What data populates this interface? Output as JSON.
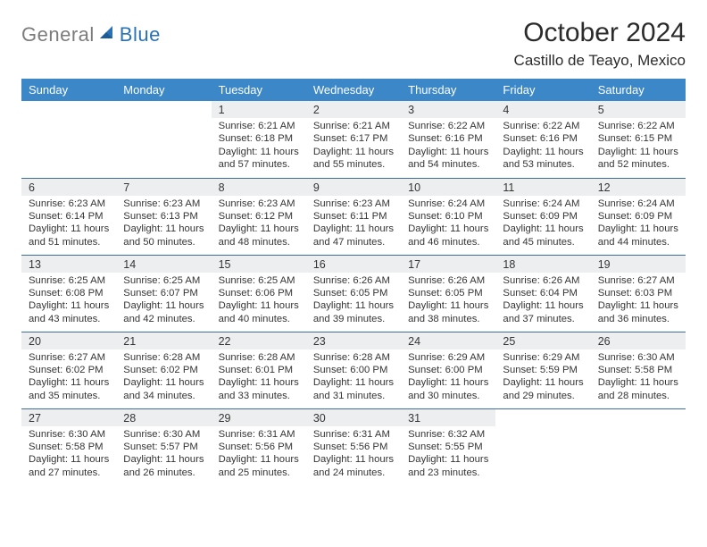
{
  "logo": {
    "general": "General",
    "blue": "Blue"
  },
  "title": "October 2024",
  "location": "Castillo de Teayo, Mexico",
  "colors": {
    "header_bg": "#3c87c7",
    "header_fg": "#ffffff",
    "daynum_bg": "#eceef0",
    "row_border": "#3c6f9e",
    "logo_gray": "#7c7c7c",
    "logo_blue": "#2a72b5"
  },
  "weekdays": [
    "Sunday",
    "Monday",
    "Tuesday",
    "Wednesday",
    "Thursday",
    "Friday",
    "Saturday"
  ],
  "first_weekday_index": 2,
  "days_in_month": 31,
  "days": {
    "1": {
      "sunrise": "6:21 AM",
      "sunset": "6:18 PM",
      "daylight": "11 hours and 57 minutes."
    },
    "2": {
      "sunrise": "6:21 AM",
      "sunset": "6:17 PM",
      "daylight": "11 hours and 55 minutes."
    },
    "3": {
      "sunrise": "6:22 AM",
      "sunset": "6:16 PM",
      "daylight": "11 hours and 54 minutes."
    },
    "4": {
      "sunrise": "6:22 AM",
      "sunset": "6:16 PM",
      "daylight": "11 hours and 53 minutes."
    },
    "5": {
      "sunrise": "6:22 AM",
      "sunset": "6:15 PM",
      "daylight": "11 hours and 52 minutes."
    },
    "6": {
      "sunrise": "6:23 AM",
      "sunset": "6:14 PM",
      "daylight": "11 hours and 51 minutes."
    },
    "7": {
      "sunrise": "6:23 AM",
      "sunset": "6:13 PM",
      "daylight": "11 hours and 50 minutes."
    },
    "8": {
      "sunrise": "6:23 AM",
      "sunset": "6:12 PM",
      "daylight": "11 hours and 48 minutes."
    },
    "9": {
      "sunrise": "6:23 AM",
      "sunset": "6:11 PM",
      "daylight": "11 hours and 47 minutes."
    },
    "10": {
      "sunrise": "6:24 AM",
      "sunset": "6:10 PM",
      "daylight": "11 hours and 46 minutes."
    },
    "11": {
      "sunrise": "6:24 AM",
      "sunset": "6:09 PM",
      "daylight": "11 hours and 45 minutes."
    },
    "12": {
      "sunrise": "6:24 AM",
      "sunset": "6:09 PM",
      "daylight": "11 hours and 44 minutes."
    },
    "13": {
      "sunrise": "6:25 AM",
      "sunset": "6:08 PM",
      "daylight": "11 hours and 43 minutes."
    },
    "14": {
      "sunrise": "6:25 AM",
      "sunset": "6:07 PM",
      "daylight": "11 hours and 42 minutes."
    },
    "15": {
      "sunrise": "6:25 AM",
      "sunset": "6:06 PM",
      "daylight": "11 hours and 40 minutes."
    },
    "16": {
      "sunrise": "6:26 AM",
      "sunset": "6:05 PM",
      "daylight": "11 hours and 39 minutes."
    },
    "17": {
      "sunrise": "6:26 AM",
      "sunset": "6:05 PM",
      "daylight": "11 hours and 38 minutes."
    },
    "18": {
      "sunrise": "6:26 AM",
      "sunset": "6:04 PM",
      "daylight": "11 hours and 37 minutes."
    },
    "19": {
      "sunrise": "6:27 AM",
      "sunset": "6:03 PM",
      "daylight": "11 hours and 36 minutes."
    },
    "20": {
      "sunrise": "6:27 AM",
      "sunset": "6:02 PM",
      "daylight": "11 hours and 35 minutes."
    },
    "21": {
      "sunrise": "6:28 AM",
      "sunset": "6:02 PM",
      "daylight": "11 hours and 34 minutes."
    },
    "22": {
      "sunrise": "6:28 AM",
      "sunset": "6:01 PM",
      "daylight": "11 hours and 33 minutes."
    },
    "23": {
      "sunrise": "6:28 AM",
      "sunset": "6:00 PM",
      "daylight": "11 hours and 31 minutes."
    },
    "24": {
      "sunrise": "6:29 AM",
      "sunset": "6:00 PM",
      "daylight": "11 hours and 30 minutes."
    },
    "25": {
      "sunrise": "6:29 AM",
      "sunset": "5:59 PM",
      "daylight": "11 hours and 29 minutes."
    },
    "26": {
      "sunrise": "6:30 AM",
      "sunset": "5:58 PM",
      "daylight": "11 hours and 28 minutes."
    },
    "27": {
      "sunrise": "6:30 AM",
      "sunset": "5:58 PM",
      "daylight": "11 hours and 27 minutes."
    },
    "28": {
      "sunrise": "6:30 AM",
      "sunset": "5:57 PM",
      "daylight": "11 hours and 26 minutes."
    },
    "29": {
      "sunrise": "6:31 AM",
      "sunset": "5:56 PM",
      "daylight": "11 hours and 25 minutes."
    },
    "30": {
      "sunrise": "6:31 AM",
      "sunset": "5:56 PM",
      "daylight": "11 hours and 24 minutes."
    },
    "31": {
      "sunrise": "6:32 AM",
      "sunset": "5:55 PM",
      "daylight": "11 hours and 23 minutes."
    }
  },
  "labels": {
    "sunrise": "Sunrise: ",
    "sunset": "Sunset: ",
    "daylight": "Daylight: "
  }
}
